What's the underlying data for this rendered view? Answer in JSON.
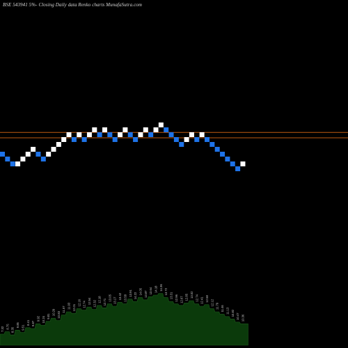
{
  "title": "BSE 543941 5%-  Closing Daily data  Renko  charts MunafaSutra.com",
  "colors": {
    "background": "#000000",
    "up_brick": "#ffffff",
    "down_brick": "#1e73e8",
    "reference_line": "#c05a10",
    "volume_fill": "#0b3a0b",
    "volume_label": "#c8c8c8"
  },
  "chart_data": {
    "type": "renko",
    "brick_size_percent": 5,
    "reference_levels": [
      1,
      2.1
    ],
    "bricks": [
      {
        "level": 0,
        "dir": "down"
      },
      {
        "level": -1,
        "dir": "down"
      },
      {
        "level": -2,
        "dir": "down"
      },
      {
        "level": -2,
        "dir": "up"
      },
      {
        "level": -1,
        "dir": "up"
      },
      {
        "level": 0,
        "dir": "up"
      },
      {
        "level": 1,
        "dir": "up"
      },
      {
        "level": 0,
        "dir": "down"
      },
      {
        "level": -1,
        "dir": "down"
      },
      {
        "level": 0,
        "dir": "up"
      },
      {
        "level": 1,
        "dir": "up"
      },
      {
        "level": 2,
        "dir": "up"
      },
      {
        "level": 3,
        "dir": "up"
      },
      {
        "level": 4,
        "dir": "up"
      },
      {
        "level": 3,
        "dir": "down"
      },
      {
        "level": 4,
        "dir": "up"
      },
      {
        "level": 3,
        "dir": "down"
      },
      {
        "level": 4,
        "dir": "up"
      },
      {
        "level": 5,
        "dir": "up"
      },
      {
        "level": 4,
        "dir": "down"
      },
      {
        "level": 5,
        "dir": "up"
      },
      {
        "level": 4,
        "dir": "down"
      },
      {
        "level": 3,
        "dir": "down"
      },
      {
        "level": 4,
        "dir": "up"
      },
      {
        "level": 5,
        "dir": "up"
      },
      {
        "level": 4,
        "dir": "down"
      },
      {
        "level": 3,
        "dir": "down"
      },
      {
        "level": 4,
        "dir": "up"
      },
      {
        "level": 5,
        "dir": "up"
      },
      {
        "level": 4,
        "dir": "down"
      },
      {
        "level": 5,
        "dir": "up"
      },
      {
        "level": 6,
        "dir": "up"
      },
      {
        "level": 5,
        "dir": "down"
      },
      {
        "level": 4,
        "dir": "down"
      },
      {
        "level": 3,
        "dir": "down"
      },
      {
        "level": 2,
        "dir": "down"
      },
      {
        "level": 3,
        "dir": "up"
      },
      {
        "level": 4,
        "dir": "up"
      },
      {
        "level": 3,
        "dir": "down"
      },
      {
        "level": 4,
        "dir": "up"
      },
      {
        "level": 3,
        "dir": "down"
      },
      {
        "level": 2,
        "dir": "down"
      },
      {
        "level": 1,
        "dir": "down"
      },
      {
        "level": 0,
        "dir": "down"
      },
      {
        "level": -1,
        "dir": "down"
      },
      {
        "level": -2,
        "dir": "down"
      },
      {
        "level": -3,
        "dir": "down"
      },
      {
        "level": -2,
        "dir": "up"
      }
    ],
    "volume": [
      {
        "value": 14,
        "label": "7.32"
      },
      {
        "value": 17,
        "label": "8.75"
      },
      {
        "value": 13,
        "label": "8.35"
      },
      {
        "value": 19,
        "label": "9.85"
      },
      {
        "value": 16,
        "label": "9.51"
      },
      {
        "value": 22,
        "label": "8.41"
      },
      {
        "value": 21,
        "label": "9.87"
      },
      {
        "value": 27,
        "label": "9.92"
      },
      {
        "value": 25,
        "label": "10.24"
      },
      {
        "value": 30,
        "label": "9.81"
      },
      {
        "value": 34,
        "label": "10.29"
      },
      {
        "value": 31,
        "label": "10.83"
      },
      {
        "value": 38,
        "label": "11.57"
      },
      {
        "value": 42,
        "label": "11.93"
      },
      {
        "value": 40,
        "label": "12.01"
      },
      {
        "value": 46,
        "label": "12.16"
      },
      {
        "value": 44,
        "label": "12.74"
      },
      {
        "value": 48,
        "label": "12.54"
      },
      {
        "value": 45,
        "label": "12.32"
      },
      {
        "value": 50,
        "label": "12.18"
      },
      {
        "value": 47,
        "label": "12.71"
      },
      {
        "value": 52,
        "label": "13.05"
      },
      {
        "value": 49,
        "label": "13.17"
      },
      {
        "value": 54,
        "label": "13.42"
      },
      {
        "value": 52,
        "label": "13.58"
      },
      {
        "value": 58,
        "label": "13.91"
      },
      {
        "value": 55,
        "label": "14.22"
      },
      {
        "value": 60,
        "label": "14.05"
      },
      {
        "value": 57,
        "label": "13.87"
      },
      {
        "value": 61,
        "label": "13.64"
      },
      {
        "value": 63,
        "label": "14.18"
      },
      {
        "value": 65,
        "label": "14.36"
      },
      {
        "value": 60,
        "label": "13.72"
      },
      {
        "value": 55,
        "label": "13.31"
      },
      {
        "value": 52,
        "label": "12.96"
      },
      {
        "value": 50,
        "label": "12.67"
      },
      {
        "value": 53,
        "label": "12.85"
      },
      {
        "value": 56,
        "label": "13.02"
      },
      {
        "value": 52,
        "label": "12.74"
      },
      {
        "value": 49,
        "label": "12.41"
      },
      {
        "value": 51,
        "label": "12.58"
      },
      {
        "value": 46,
        "label": "12.12"
      },
      {
        "value": 42,
        "label": "11.79"
      },
      {
        "value": 39,
        "label": "11.46"
      },
      {
        "value": 36,
        "label": "11.13"
      },
      {
        "value": 33,
        "label": "10.82"
      },
      {
        "value": 29,
        "label": "10.47"
      },
      {
        "value": 27,
        "label": "10.36"
      }
    ]
  }
}
